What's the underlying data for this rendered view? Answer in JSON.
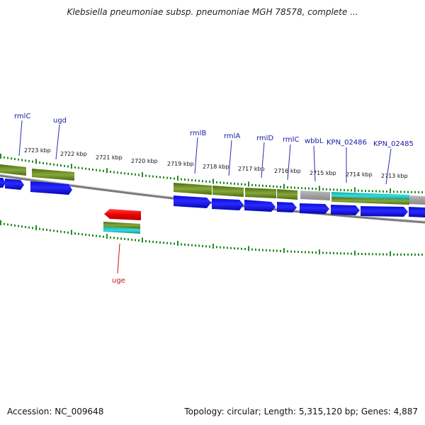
{
  "title": "Klebsiella pneumoniae subsp. pneumoniae MGH 78578, complete ...",
  "footer": {
    "accession": "Accession: NC_009648",
    "summary": "Topology: circular; Length: 5,315,120 bp; Genes: 4,887"
  },
  "colors": {
    "cds": "#1010ee",
    "gene": "#6b8e23",
    "misc": "#a8a8a8",
    "highlight": "#20c0c0",
    "selected": "#ee1111",
    "tick": "#228b22",
    "backbone": "#888888",
    "label_upper": "#1a1aa8",
    "label_lower": "#cc1111"
  },
  "ruler": [
    "2723 kbp",
    "2722 kbp",
    "2721 kbp",
    "2720 kbp",
    "2719 kbp",
    "2718 kbp",
    "2717 kbp",
    "2716 kbp",
    "2715 kbp",
    "2714 kbp",
    "2713 kbp"
  ],
  "gene_labels_upper": [
    "rmlC",
    "ugd",
    "rmlB",
    "rmlA",
    "rmlD",
    "rmlC",
    "wbbL",
    "KPN_02486",
    "KPN_02485"
  ],
  "gene_labels_lower": [
    "uge"
  ]
}
